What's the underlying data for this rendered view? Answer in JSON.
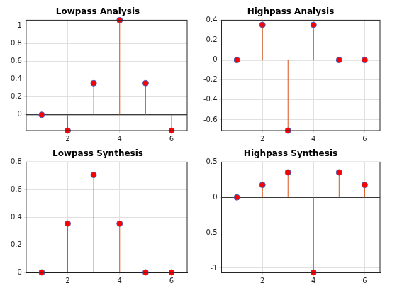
{
  "chart_data": [
    {
      "type": "stem",
      "title": "Lowpass Analysis",
      "x": [
        1,
        2,
        3,
        4,
        5,
        6
      ],
      "values": [
        0,
        -0.1768,
        0.3536,
        1.0607,
        0.3536,
        -0.1768
      ],
      "xlim": [
        0.4,
        6.6
      ],
      "xticks": [
        2,
        4,
        6
      ],
      "ylim": [
        -0.1768,
        1.0607
      ],
      "yticks": [
        0,
        0.2,
        0.4,
        0.6,
        0.8,
        1
      ],
      "grid": true,
      "color": "#d95319",
      "marker": "o"
    },
    {
      "type": "stem",
      "title": "Highpass Analysis",
      "x": [
        1,
        2,
        3,
        4,
        5,
        6
      ],
      "values": [
        0,
        0.3536,
        -0.7071,
        0.3536,
        0,
        0
      ],
      "xlim": [
        0.4,
        6.6
      ],
      "xticks": [
        2,
        4,
        6
      ],
      "ylim": [
        -0.7071,
        0.4
      ],
      "yticks": [
        -0.6,
        -0.4,
        -0.2,
        0,
        0.2,
        0.4
      ],
      "grid": true,
      "color": "#d95319",
      "marker": "o"
    },
    {
      "type": "stem",
      "title": "Lowpass Synthesis",
      "x": [
        1,
        2,
        3,
        4,
        5,
        6
      ],
      "values": [
        0,
        0.3536,
        0.7071,
        0.3536,
        0,
        0
      ],
      "xlim": [
        0.4,
        6.6
      ],
      "xticks": [
        2,
        4,
        6
      ],
      "ylim": [
        0,
        0.8
      ],
      "yticks": [
        0,
        0.2,
        0.4,
        0.6,
        0.8
      ],
      "grid": true,
      "color": "#d95319",
      "marker": "o"
    },
    {
      "type": "stem",
      "title": "Highpass Synthesis",
      "x": [
        1,
        2,
        3,
        4,
        5,
        6
      ],
      "values": [
        0,
        0.1768,
        0.3536,
        -1.0607,
        0.3536,
        0.1768
      ],
      "xlim": [
        0.4,
        6.6
      ],
      "xticks": [
        2,
        4,
        6
      ],
      "ylim": [
        -1.0607,
        0.5
      ],
      "yticks": [
        -1,
        -0.5,
        0,
        0.5
      ],
      "grid": true,
      "color": "#d95319",
      "marker": "o"
    }
  ]
}
